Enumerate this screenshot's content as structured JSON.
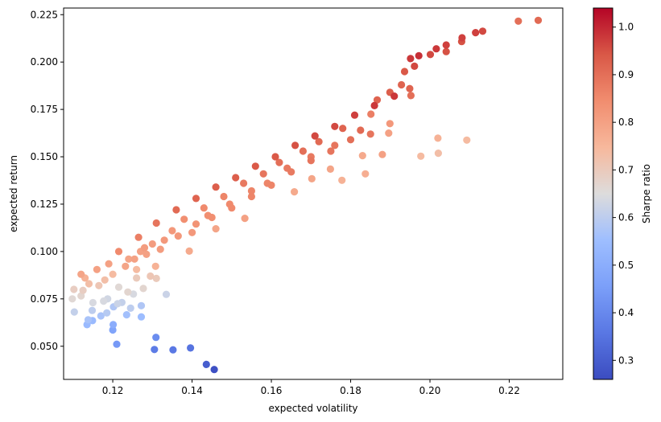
{
  "chart_data": {
    "type": "scatter",
    "title": "",
    "xlabel": "expected volatility",
    "ylabel": "expected return",
    "xlim": [
      0.1076,
      0.2335
    ],
    "ylim": [
      0.0325,
      0.2285
    ],
    "xticks": [
      0.12,
      0.14,
      0.16,
      0.18,
      0.2,
      0.22
    ],
    "xtick_labels": [
      "0.12",
      "0.14",
      "0.16",
      "0.18",
      "0.20",
      "0.22"
    ],
    "yticks": [
      0.05,
      0.075,
      0.1,
      0.125,
      0.15,
      0.175,
      0.2,
      0.225
    ],
    "ytick_labels": [
      "0.050",
      "0.075",
      "0.100",
      "0.125",
      "0.150",
      "0.175",
      "0.200",
      "0.225"
    ],
    "grid": false,
    "colorbar": {
      "label": "Sharpe ratio",
      "colormap": "coolwarm",
      "range": [
        0.26,
        1.04
      ],
      "ticks": [
        0.3,
        0.4,
        0.5,
        0.6,
        0.7,
        0.8,
        0.9,
        1.0
      ],
      "tick_labels": [
        "0.3",
        "0.4",
        "0.5",
        "0.6",
        "0.7",
        "0.8",
        "0.9",
        "1.0"
      ]
    },
    "colormap_stops": [
      {
        "t": 0.0,
        "color": "#3b4cc0"
      },
      {
        "t": 0.125,
        "color": "#5977e3"
      },
      {
        "t": 0.25,
        "color": "#7b9ff9"
      },
      {
        "t": 0.375,
        "color": "#9ebeff"
      },
      {
        "t": 0.5,
        "color": "#dddcdc"
      },
      {
        "t": 0.625,
        "color": "#f7b89c"
      },
      {
        "t": 0.75,
        "color": "#f18d6f"
      },
      {
        "t": 0.875,
        "color": "#d95847"
      },
      {
        "t": 1.0,
        "color": "#b40426"
      }
    ],
    "series": [
      {
        "name": "portfolios",
        "points": [
          [
            0.2273,
            0.222,
            0.91
          ],
          [
            0.2223,
            0.2216,
            0.9
          ],
          [
            0.2133,
            0.2163,
            0.96
          ],
          [
            0.2115,
            0.2155,
            0.97
          ],
          [
            0.2081,
            0.2128,
            0.97
          ],
          [
            0.208,
            0.2108,
            0.95
          ],
          [
            0.2041,
            0.209,
            0.97
          ],
          [
            0.2041,
            0.2055,
            0.95
          ],
          [
            0.2016,
            0.207,
            0.98
          ],
          [
            0.2001,
            0.204,
            0.96
          ],
          [
            0.1972,
            0.2033,
            0.99
          ],
          [
            0.1951,
            0.2018,
            0.98
          ],
          [
            0.1961,
            0.1978,
            0.96
          ],
          [
            0.1936,
            0.195,
            0.94
          ],
          [
            0.1928,
            0.188,
            0.92
          ],
          [
            0.1949,
            0.186,
            0.92
          ],
          [
            0.1952,
            0.1823,
            0.9
          ],
          [
            0.1899,
            0.184,
            0.93
          ],
          [
            0.1867,
            0.18,
            0.92
          ],
          [
            0.1899,
            0.1675,
            0.82
          ],
          [
            0.1896,
            0.1625,
            0.8
          ],
          [
            0.1851,
            0.1725,
            0.87
          ],
          [
            0.188,
            0.1512,
            0.8
          ],
          [
            0.183,
            0.1506,
            0.78
          ],
          [
            0.1837,
            0.141,
            0.77
          ],
          [
            0.1977,
            0.1503,
            0.74
          ],
          [
            0.2021,
            0.1519,
            0.73
          ],
          [
            0.202,
            0.1598,
            0.76
          ],
          [
            0.2093,
            0.1588,
            0.74
          ],
          [
            0.1778,
            0.1376,
            0.76
          ],
          [
            0.1749,
            0.1435,
            0.79
          ],
          [
            0.1702,
            0.1384,
            0.79
          ],
          [
            0.1658,
            0.1315,
            0.78
          ],
          [
            0.1533,
            0.1175,
            0.8
          ],
          [
            0.146,
            0.112,
            0.79
          ],
          [
            0.1393,
            0.1002,
            0.78
          ],
          [
            0.1365,
            0.1082,
            0.82
          ],
          [
            0.1295,
            0.087,
            0.71
          ],
          [
            0.131,
            0.0858,
            0.7
          ],
          [
            0.1335,
            0.0774,
            0.62
          ],
          [
            0.1308,
            0.0922,
            0.76
          ],
          [
            0.1277,
            0.0805,
            0.67
          ],
          [
            0.126,
            0.086,
            0.7
          ],
          [
            0.1252,
            0.0775,
            0.64
          ],
          [
            0.1238,
            0.0786,
            0.67
          ],
          [
            0.1215,
            0.0812,
            0.66
          ],
          [
            0.1212,
            0.0724,
            0.62
          ],
          [
            0.1223,
            0.0731,
            0.61
          ],
          [
            0.1245,
            0.0701,
            0.6
          ],
          [
            0.1272,
            0.0714,
            0.58
          ],
          [
            0.1235,
            0.0666,
            0.56
          ],
          [
            0.1272,
            0.0655,
            0.55
          ],
          [
            0.1202,
            0.0708,
            0.58
          ],
          [
            0.1185,
            0.0676,
            0.59
          ],
          [
            0.117,
            0.066,
            0.57
          ],
          [
            0.1187,
            0.075,
            0.63
          ],
          [
            0.1177,
            0.0738,
            0.64
          ],
          [
            0.1148,
            0.0689,
            0.6
          ],
          [
            0.1138,
            0.064,
            0.57
          ],
          [
            0.1135,
            0.0614,
            0.54
          ],
          [
            0.1149,
            0.0635,
            0.54
          ],
          [
            0.112,
            0.0766,
            0.67
          ],
          [
            0.1098,
            0.075,
            0.66
          ],
          [
            0.1103,
            0.0681,
            0.61
          ],
          [
            0.1102,
            0.08,
            0.69
          ],
          [
            0.1125,
            0.0795,
            0.69
          ],
          [
            0.115,
            0.073,
            0.64
          ],
          [
            0.1201,
            0.0614,
            0.5
          ],
          [
            0.12,
            0.0586,
            0.47
          ],
          [
            0.121,
            0.0511,
            0.44
          ],
          [
            0.1309,
            0.0547,
            0.41
          ],
          [
            0.1305,
            0.0483,
            0.37
          ],
          [
            0.1352,
            0.0481,
            0.36
          ],
          [
            0.1396,
            0.0491,
            0.35
          ],
          [
            0.1436,
            0.0404,
            0.3
          ],
          [
            0.1456,
            0.0377,
            0.27
          ],
          [
            0.1232,
            0.0922,
            0.79
          ],
          [
            0.1255,
            0.096,
            0.8
          ],
          [
            0.1285,
            0.0985,
            0.8
          ],
          [
            0.132,
            0.1012,
            0.81
          ],
          [
            0.14,
            0.11,
            0.82
          ],
          [
            0.145,
            0.118,
            0.84
          ],
          [
            0.15,
            0.123,
            0.85
          ],
          [
            0.155,
            0.129,
            0.86
          ],
          [
            0.16,
            0.135,
            0.86
          ],
          [
            0.165,
            0.142,
            0.88
          ],
          [
            0.17,
            0.148,
            0.89
          ],
          [
            0.175,
            0.153,
            0.89
          ],
          [
            0.18,
            0.159,
            0.9
          ],
          [
            0.185,
            0.162,
            0.89
          ],
          [
            0.178,
            0.165,
            0.92
          ],
          [
            0.172,
            0.158,
            0.91
          ],
          [
            0.168,
            0.153,
            0.9
          ],
          [
            0.162,
            0.147,
            0.9
          ],
          [
            0.158,
            0.141,
            0.89
          ],
          [
            0.153,
            0.136,
            0.88
          ],
          [
            0.148,
            0.129,
            0.86
          ],
          [
            0.143,
            0.123,
            0.85
          ],
          [
            0.138,
            0.117,
            0.84
          ],
          [
            0.135,
            0.111,
            0.82
          ],
          [
            0.13,
            0.104,
            0.81
          ],
          [
            0.127,
            0.1,
            0.8
          ],
          [
            0.124,
            0.096,
            0.79
          ],
          [
            0.126,
            0.0905,
            0.74
          ],
          [
            0.12,
            0.088,
            0.74
          ],
          [
            0.118,
            0.085,
            0.73
          ],
          [
            0.1165,
            0.082,
            0.71
          ],
          [
            0.114,
            0.083,
            0.73
          ],
          [
            0.113,
            0.086,
            0.76
          ],
          [
            0.112,
            0.088,
            0.79
          ],
          [
            0.116,
            0.0905,
            0.8
          ],
          [
            0.119,
            0.0935,
            0.8
          ],
          [
            0.1215,
            0.1,
            0.85
          ],
          [
            0.1265,
            0.1075,
            0.87
          ],
          [
            0.131,
            0.115,
            0.89
          ],
          [
            0.136,
            0.122,
            0.91
          ],
          [
            0.141,
            0.128,
            0.92
          ],
          [
            0.146,
            0.134,
            0.93
          ],
          [
            0.151,
            0.139,
            0.93
          ],
          [
            0.156,
            0.145,
            0.94
          ],
          [
            0.161,
            0.15,
            0.94
          ],
          [
            0.166,
            0.156,
            0.95
          ],
          [
            0.171,
            0.161,
            0.96
          ],
          [
            0.176,
            0.166,
            0.96
          ],
          [
            0.181,
            0.172,
            0.97
          ],
          [
            0.186,
            0.177,
            0.98
          ],
          [
            0.191,
            0.182,
            0.98
          ],
          [
            0.1825,
            0.164,
            0.91
          ],
          [
            0.176,
            0.156,
            0.89
          ],
          [
            0.17,
            0.15,
            0.88
          ],
          [
            0.164,
            0.144,
            0.88
          ],
          [
            0.159,
            0.136,
            0.86
          ],
          [
            0.155,
            0.132,
            0.86
          ],
          [
            0.1495,
            0.125,
            0.85
          ],
          [
            0.144,
            0.119,
            0.84
          ],
          [
            0.141,
            0.1145,
            0.83
          ],
          [
            0.133,
            0.106,
            0.82
          ],
          [
            0.128,
            0.102,
            0.81
          ]
        ]
      }
    ]
  }
}
